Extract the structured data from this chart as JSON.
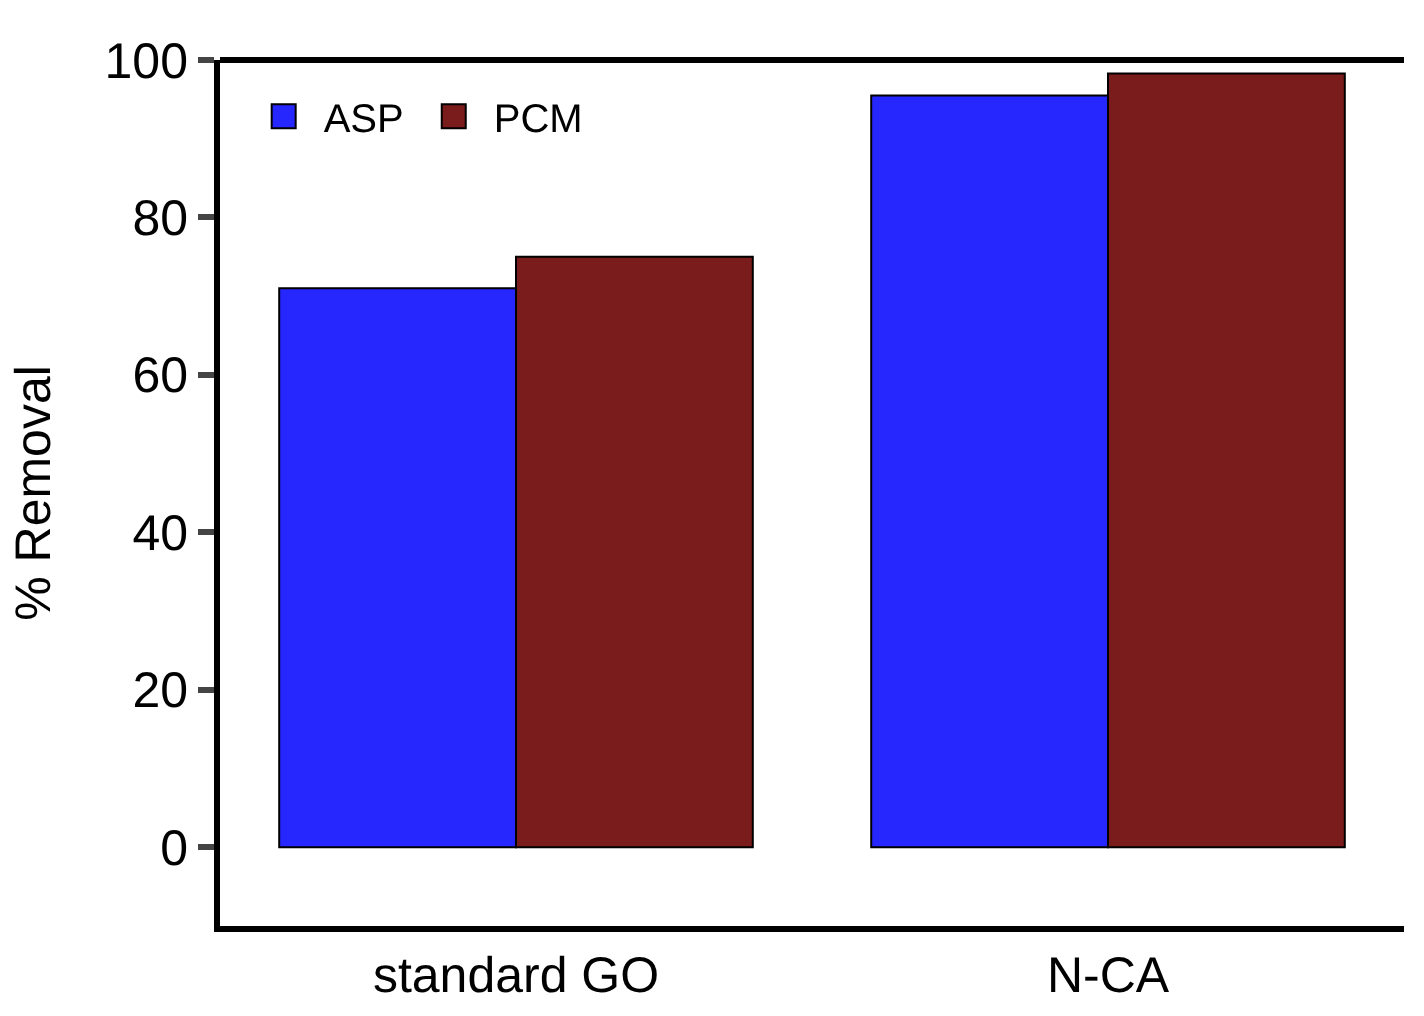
{
  "chart_data": {
    "type": "bar",
    "ylabel": "% Removal",
    "categories": [
      "standard GO",
      "N-CA"
    ],
    "series": [
      {
        "name": "ASP",
        "color": "#2626ff",
        "values": [
          71,
          95.5
        ]
      },
      {
        "name": "PCM",
        "color": "#7a1c1c",
        "values": [
          75,
          98.3
        ]
      }
    ],
    "ylim": [
      -10,
      100
    ],
    "yticks": [
      0,
      20,
      40,
      60,
      80,
      100
    ],
    "grid": false,
    "legend": "top left"
  }
}
